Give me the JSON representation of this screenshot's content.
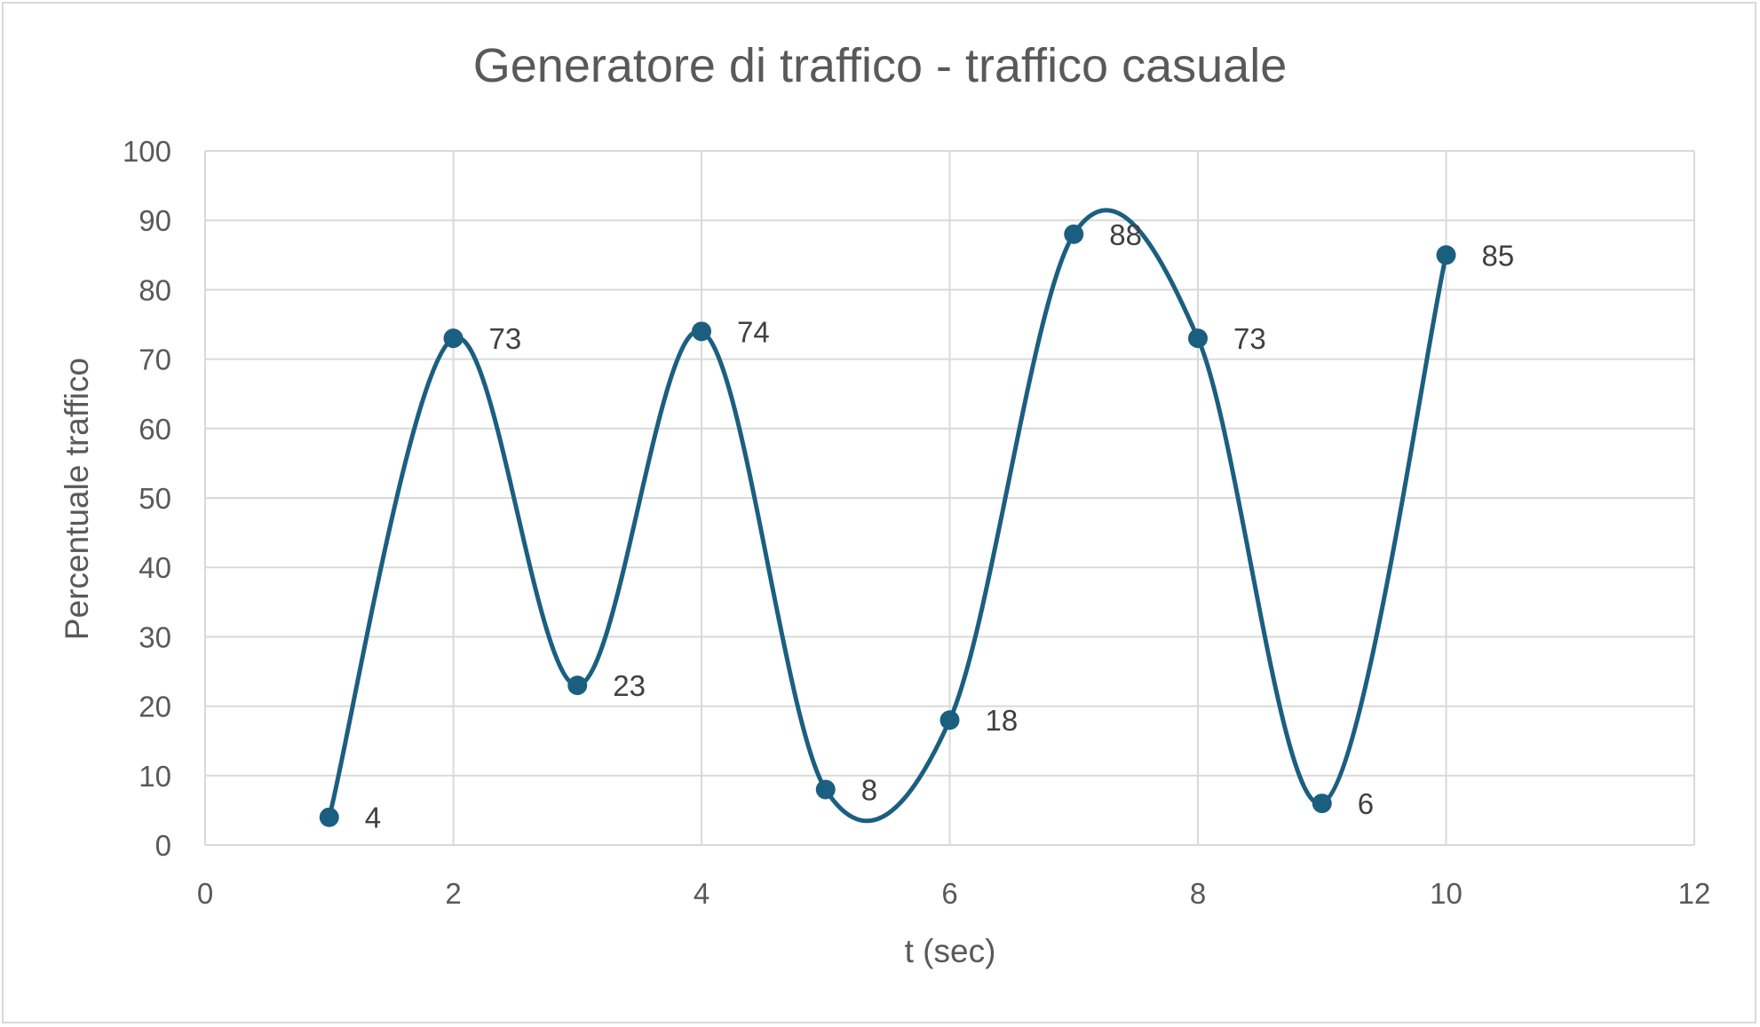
{
  "chart_data": {
    "type": "scatter",
    "title": "Generatore di traffico - traffico casuale",
    "xlabel": "t (sec)",
    "ylabel": "Percentuale traffico",
    "xlim": [
      0,
      12
    ],
    "ylim": [
      0,
      100
    ],
    "xticks": [
      0,
      2,
      4,
      6,
      8,
      10,
      12
    ],
    "yticks": [
      0,
      10,
      20,
      30,
      40,
      50,
      60,
      70,
      80,
      90,
      100
    ],
    "grid": true,
    "smoothed": true,
    "series": [
      {
        "color": "#1b5f80",
        "x": [
          1,
          2,
          3,
          4,
          5,
          6,
          7,
          8,
          9,
          10
        ],
        "y": [
          4,
          73,
          23,
          74,
          8,
          18,
          88,
          73,
          6,
          85
        ],
        "data_labels": [
          "4",
          "73",
          "23",
          "74",
          "8",
          "18",
          "88",
          "73",
          "6",
          "85"
        ]
      }
    ],
    "colors": {
      "grid": "#d9d9d9",
      "text": "#595959",
      "label": "#404040"
    }
  }
}
